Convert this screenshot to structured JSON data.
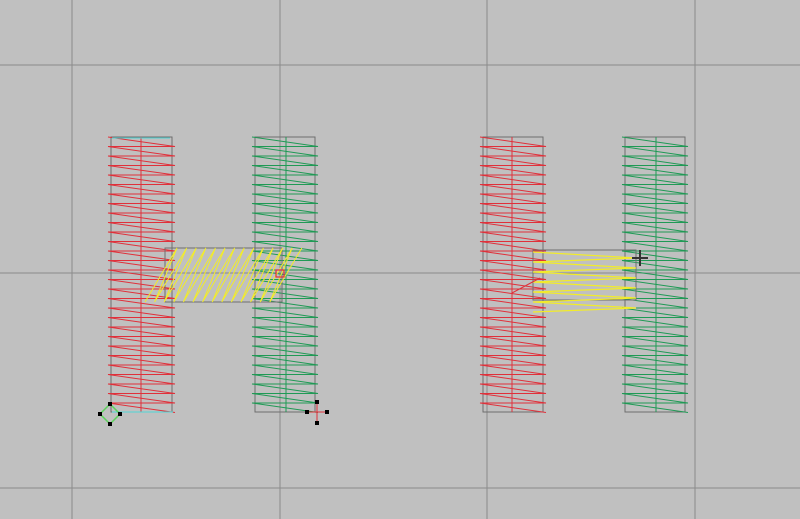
{
  "canvas": {
    "background": "#c0c0c0",
    "grid_color": "#8a8a8a",
    "outline_color": "#6e6e6e"
  },
  "thread_colors": {
    "left_column": "#e0303a",
    "right_column": "#1f9a55",
    "crossbar": "#f2ec2a",
    "center_line_left_letter": "#4fd6d6"
  },
  "letters": [
    {
      "glyph_shape": "H",
      "state": "selected"
    },
    {
      "glyph_shape": "H",
      "state": "editing"
    }
  ]
}
